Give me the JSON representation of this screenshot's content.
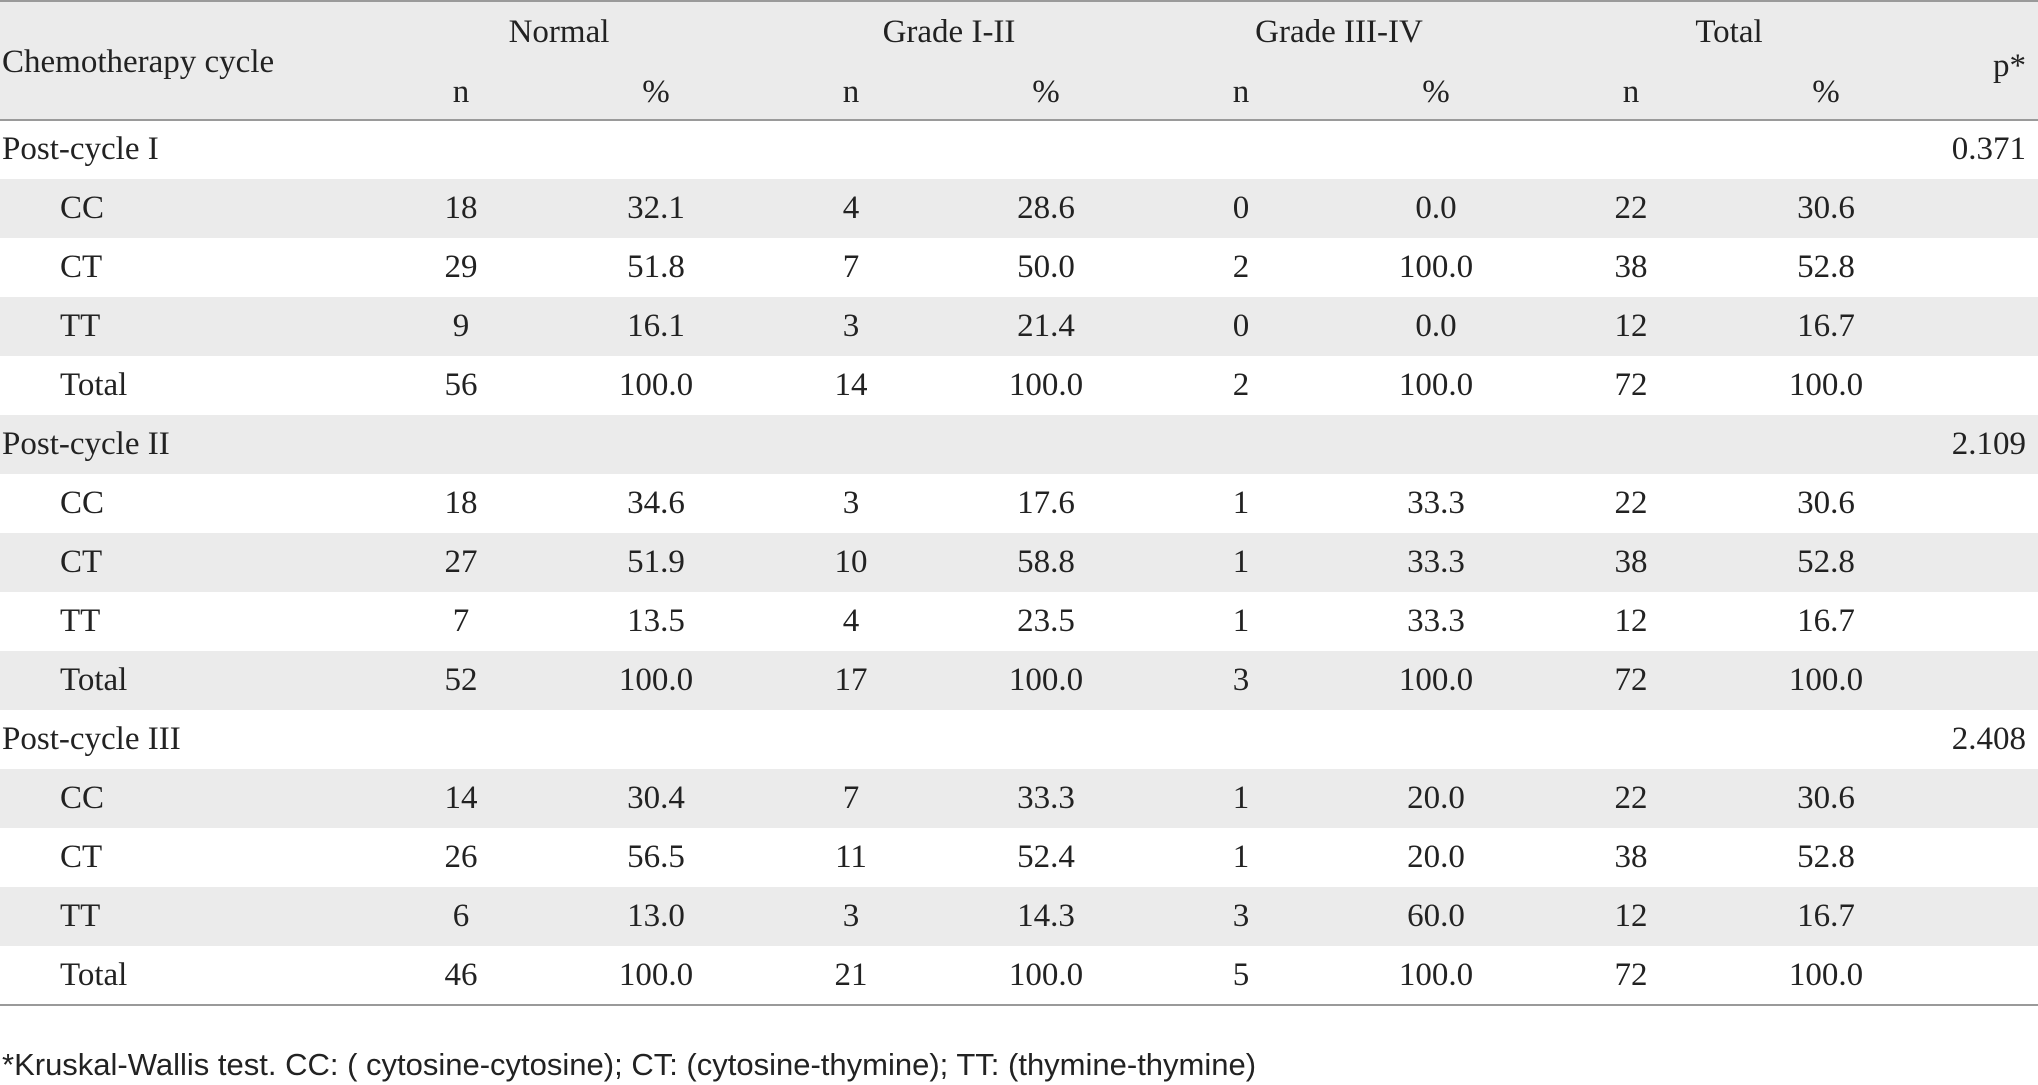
{
  "table": {
    "header": {
      "first": "Chemotherapy cycle",
      "groups": [
        "Normal",
        "Grade I-II",
        "Grade III-IV",
        "Total"
      ],
      "subheaders": [
        "n",
        "%",
        "n",
        "%",
        "n",
        "%",
        "n",
        "%"
      ],
      "p": "p*"
    },
    "sections": [
      {
        "label": "Post-cycle I",
        "p": "0.371",
        "rows": [
          [
            "CC",
            "18",
            "32.1",
            "4",
            "28.6",
            "0",
            "0.0",
            "22",
            "30.6"
          ],
          [
            "CT",
            "29",
            "51.8",
            "7",
            "50.0",
            "2",
            "100.0",
            "38",
            "52.8"
          ],
          [
            "TT",
            "9",
            "16.1",
            "3",
            "21.4",
            "0",
            "0.0",
            "12",
            "16.7"
          ],
          [
            "Total",
            "56",
            "100.0",
            "14",
            "100.0",
            "2",
            "100.0",
            "72",
            "100.0"
          ]
        ]
      },
      {
        "label": "Post-cycle II",
        "p": "2.109",
        "rows": [
          [
            "CC",
            "18",
            "34.6",
            "3",
            "17.6",
            "1",
            "33.3",
            "22",
            "30.6"
          ],
          [
            "CT",
            "27",
            "51.9",
            "10",
            "58.8",
            "1",
            "33.3",
            "38",
            "52.8"
          ],
          [
            "TT",
            "7",
            "13.5",
            "4",
            "23.5",
            "1",
            "33.3",
            "12",
            "16.7"
          ],
          [
            "Total",
            "52",
            "100.0",
            "17",
            "100.0",
            "3",
            "100.0",
            "72",
            "100.0"
          ]
        ]
      },
      {
        "label": "Post-cycle III",
        "p": "2.408",
        "rows": [
          [
            "CC",
            "14",
            "30.4",
            "7",
            "33.3",
            "1",
            "20.0",
            "22",
            "30.6"
          ],
          [
            "CT",
            "26",
            "56.5",
            "11",
            "52.4",
            "1",
            "20.0",
            "38",
            "52.8"
          ],
          [
            "TT",
            "6",
            "13.0",
            "3",
            "14.3",
            "3",
            "60.0",
            "12",
            "16.7"
          ],
          [
            "Total",
            "46",
            "100.0",
            "21",
            "100.0",
            "5",
            "100.0",
            "72",
            "100.0"
          ]
        ]
      }
    ]
  },
  "footnote": "*Kruskal-Wallis test. CC: ( cytosine-cytosine); CT: (cytosine-thymine); TT: (thymine-thymine)"
}
